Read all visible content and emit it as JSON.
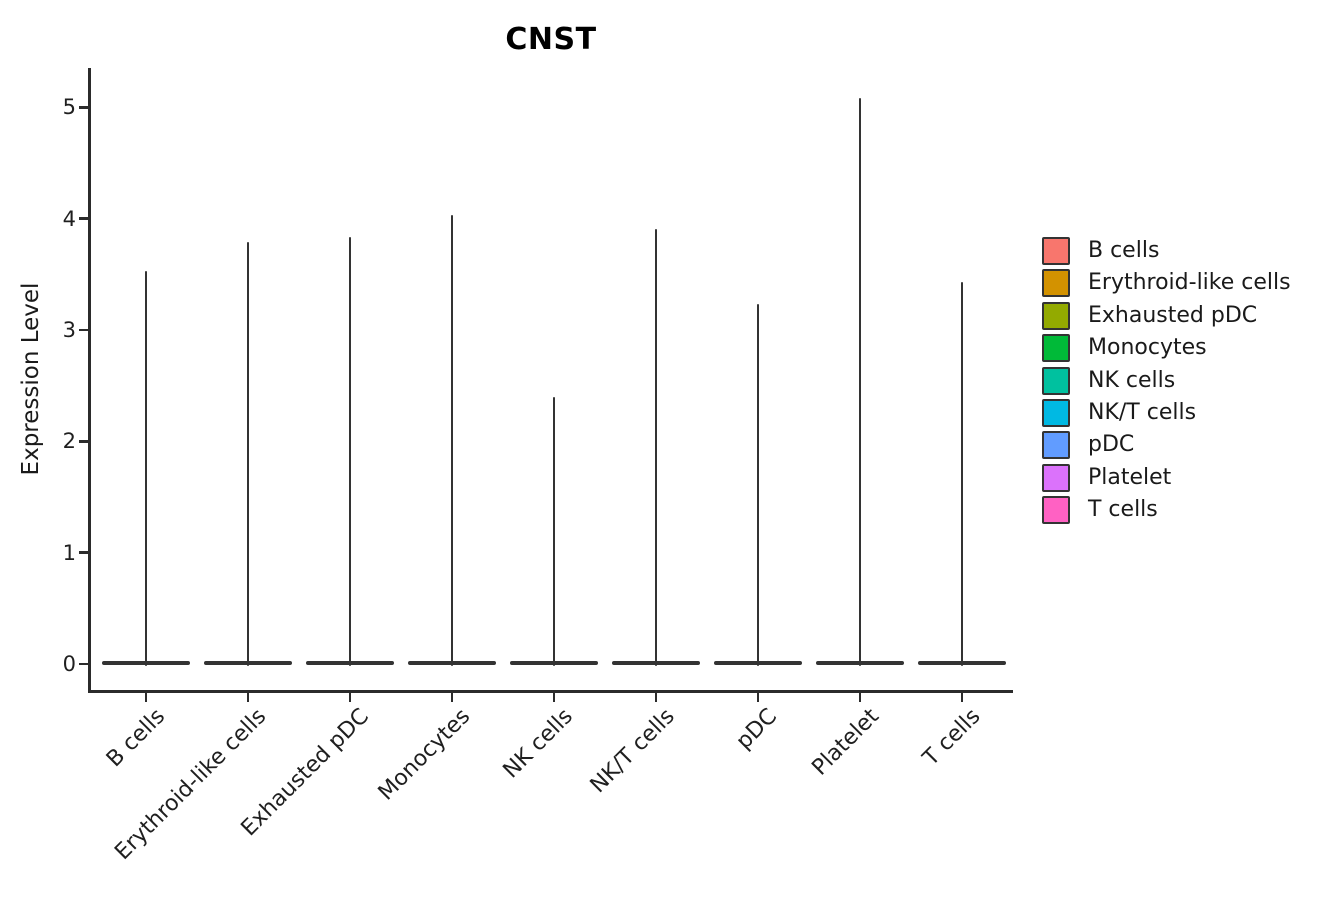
{
  "chart_data": {
    "type": "violin",
    "title": "CNST",
    "xlabel": "",
    "ylabel": "Expression Level",
    "categories": [
      "B cells",
      "Erythroid-like cells",
      "Exhausted pDC",
      "Monocytes",
      "NK cells",
      "NK/T cells",
      "pDC",
      "Platelet",
      "T cells"
    ],
    "series": [
      {
        "name": "max expression spike",
        "values": [
          3.53,
          3.79,
          3.84,
          4.03,
          2.4,
          3.91,
          3.23,
          5.08,
          3.43
        ]
      }
    ],
    "baseline_value": 0,
    "violin_shape_note": "each violin is collapsed to a flat bar at 0 with a thin vertical spike up to the max value",
    "yticks": [
      0,
      1,
      2,
      3,
      4,
      5
    ],
    "ylim": [
      -0.26,
      5.35
    ],
    "grid": "off",
    "violin_outline_color": "#333333",
    "axis_color": "#2b2b2b",
    "legend": {
      "position": "right",
      "entries": [
        {
          "label": "B cells",
          "color": "#F8766D"
        },
        {
          "label": "Erythroid-like cells",
          "color": "#D39200"
        },
        {
          "label": "Exhausted pDC",
          "color": "#93AA00"
        },
        {
          "label": "Monocytes",
          "color": "#00BA38"
        },
        {
          "label": "NK cells",
          "color": "#00C19F"
        },
        {
          "label": "NK/T cells",
          "color": "#00B9E3"
        },
        {
          "label": "pDC",
          "color": "#619CFF"
        },
        {
          "label": "Platelet",
          "color": "#DB72FB"
        },
        {
          "label": "T cells",
          "color": "#FF61C3"
        }
      ]
    }
  }
}
